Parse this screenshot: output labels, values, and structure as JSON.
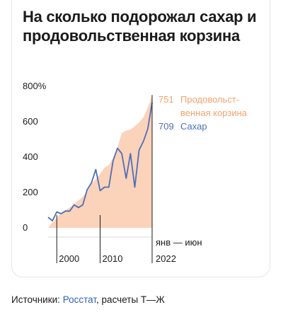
{
  "title": "На сколько подорожал сахар и продовольственная корзина",
  "source": {
    "prefix": "Источники: ",
    "link": "Росстат",
    "suffix": ", расчеты Т—Ж"
  },
  "colors": {
    "basket": "#fbd2ba",
    "basket_label": "#f2a46c",
    "sugar": "#4d6fb5",
    "axis": "#1b1b1b"
  },
  "chart_data": {
    "type": "area",
    "title": "На сколько подорожал сахар и продовольственная корзина",
    "ylim": [
      0,
      800
    ],
    "y_ticks": [
      0,
      200,
      400,
      600,
      800
    ],
    "y_tick_labels": [
      "0",
      "200",
      "400",
      "600",
      "800%"
    ],
    "x_tick_labels": [
      "2000",
      "2010",
      "янв — июн",
      "2022"
    ],
    "x_ticks": [
      2000,
      2010,
      2022
    ],
    "series": [
      {
        "name": "Продовольственная корзина",
        "label_lines": [
          "Продовольст-",
          "венная корзина"
        ],
        "type": "area",
        "x": [
          1998,
          1999,
          2000,
          2001,
          2002,
          2003,
          2004,
          2005,
          2006,
          2007,
          2008,
          2009,
          2010,
          2011,
          2012,
          2013,
          2014,
          2015,
          2016,
          2017,
          2018,
          2019,
          2020,
          2021,
          2022
        ],
        "values": [
          0,
          30,
          55,
          85,
          100,
          115,
          135,
          155,
          175,
          205,
          250,
          275,
          305,
          340,
          355,
          395,
          455,
          535,
          550,
          555,
          575,
          595,
          625,
          680,
          751
        ],
        "end_value": "751"
      },
      {
        "name": "Сахар",
        "type": "line",
        "x": [
          1998,
          1999,
          2000,
          2001,
          2002,
          2003,
          2004,
          2005,
          2006,
          2007,
          2008,
          2009,
          2010,
          2011,
          2012,
          2013,
          2014,
          2015,
          2016,
          2017,
          2018,
          2019,
          2020,
          2021,
          2022
        ],
        "values": [
          60,
          40,
          90,
          80,
          95,
          95,
          130,
          115,
          130,
          215,
          255,
          330,
          210,
          230,
          230,
          380,
          450,
          420,
          280,
          420,
          230,
          440,
          490,
          560,
          709
        ],
        "end_value": "709"
      }
    ]
  }
}
